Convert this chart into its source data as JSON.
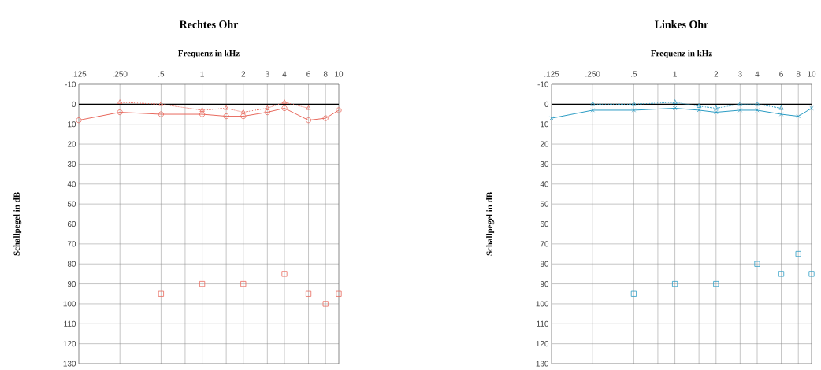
{
  "chart_data": [
    {
      "type": "line",
      "title": "Rechtes Ohr",
      "xlabel": "Frequenz in kHz",
      "ylabel": "Schallpegel in dB",
      "log": "x",
      "grid": true,
      "xlim": [
        0.125,
        10
      ],
      "ylim": [
        130,
        -10
      ],
      "xticks": [
        {
          "value": 0.125,
          "label": ".125"
        },
        {
          "value": 0.25,
          "label": ".250"
        },
        {
          "value": 0.5,
          "label": ".5"
        },
        {
          "value": 0.75,
          "label": null
        },
        1,
        {
          "value": 1.5,
          "label": null
        },
        2,
        3,
        4,
        6,
        8,
        10
      ],
      "yticks": [
        -10,
        0,
        10,
        20,
        30,
        40,
        50,
        60,
        70,
        80,
        90,
        100,
        110,
        120,
        130
      ],
      "ref_lines": [
        {
          "axis": "y",
          "value": 0,
          "color": "#000000"
        }
      ],
      "series": [
        {
          "color": "#e8685c",
          "marker": "circle",
          "line_style": "solid",
          "x": [
            0.125,
            0.25,
            0.5,
            1,
            1.5,
            2,
            3,
            4,
            6,
            8,
            10
          ],
          "values": [
            8,
            4,
            5,
            5,
            6,
            6,
            4,
            2,
            8,
            7,
            3
          ]
        },
        {
          "color": "#e8685c",
          "marker": "triangle",
          "line_style": "dotted",
          "x": [
            0.25,
            0.5,
            1,
            1.5,
            2,
            3,
            4,
            6
          ],
          "values": [
            -1,
            0,
            3,
            2,
            4,
            2,
            -1,
            2
          ]
        },
        {
          "type": "scatter",
          "color": "#e8685c",
          "marker": "square",
          "x": [
            0.5,
            1,
            2,
            4,
            6,
            8,
            10
          ],
          "values": [
            95,
            90,
            90,
            85,
            95,
            100,
            95
          ]
        }
      ]
    },
    {
      "type": "line",
      "title": "Linkes Ohr",
      "xlabel": "Frequenz in kHz",
      "ylabel": "Schallpegel in dB",
      "log": "x",
      "grid": true,
      "xlim": [
        0.125,
        10
      ],
      "ylim": [
        130,
        -10
      ],
      "xticks": [
        {
          "value": 0.125,
          "label": ".125"
        },
        {
          "value": 0.25,
          "label": ".250"
        },
        {
          "value": 0.5,
          "label": ".5"
        },
        {
          "value": 0.75,
          "label": null
        },
        1,
        {
          "value": 1.5,
          "label": null
        },
        2,
        3,
        4,
        6,
        8,
        10
      ],
      "yticks": [
        -10,
        0,
        10,
        20,
        30,
        40,
        50,
        60,
        70,
        80,
        90,
        100,
        110,
        120,
        130
      ],
      "ref_lines": [
        {
          "axis": "y",
          "value": 0,
          "color": "#000000"
        }
      ],
      "series": [
        {
          "color": "#2a9cc4",
          "marker": "cross",
          "line_style": "solid",
          "x": [
            0.125,
            0.25,
            0.5,
            1,
            1.5,
            2,
            3,
            4,
            6,
            8,
            10
          ],
          "values": [
            7,
            3,
            3,
            2,
            3,
            4,
            3,
            3,
            5,
            6,
            2
          ]
        },
        {
          "color": "#2a9cc4",
          "marker": "triangle",
          "line_style": "dotted",
          "x": [
            0.25,
            0.5,
            1,
            1.5,
            2,
            3,
            4,
            6
          ],
          "values": [
            0,
            0,
            -1,
            1,
            2,
            0,
            0,
            2
          ]
        },
        {
          "type": "scatter",
          "color": "#2a9cc4",
          "marker": "square",
          "x": [
            0.5,
            1,
            2,
            4,
            6,
            8,
            10
          ],
          "values": [
            95,
            90,
            90,
            80,
            85,
            75,
            85
          ]
        }
      ]
    }
  ]
}
